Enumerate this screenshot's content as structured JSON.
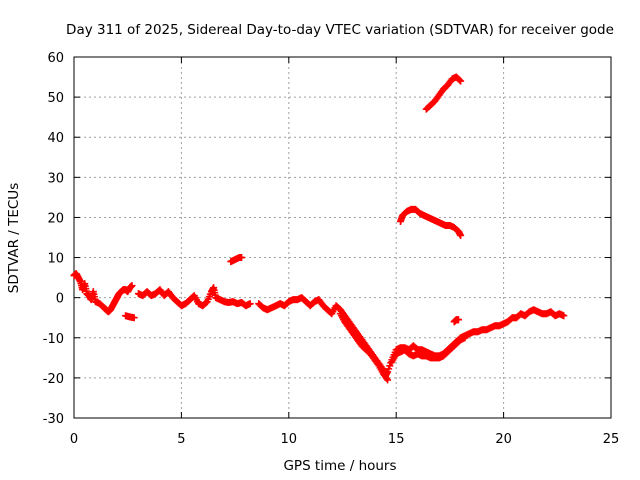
{
  "chart_data": {
    "type": "scatter",
    "title": "Day 311 of 2025, Sidereal Day-to-day VTEC variation (SDTVAR) for receiver gode",
    "xlabel": "GPS time / hours",
    "ylabel": "SDTVAR / TECUs",
    "xlim": [
      0,
      25
    ],
    "ylim": [
      -30,
      60
    ],
    "xticks": [
      "0",
      "5",
      "10",
      "15",
      "20",
      "25"
    ],
    "yticks": [
      "-30",
      "-20",
      "-10",
      "0",
      "10",
      "20",
      "30",
      "40",
      "50",
      "60"
    ],
    "grid": true,
    "marker": "+",
    "series_color": "#ff0000",
    "series": [
      {
        "name": "SDTVAR main",
        "points": [
          [
            0.0,
            5.5
          ],
          [
            0.1,
            6.0
          ],
          [
            0.2,
            5.0
          ],
          [
            0.3,
            4.0
          ],
          [
            0.4,
            2.0
          ],
          [
            0.5,
            3.5
          ],
          [
            0.6,
            1.0
          ],
          [
            0.7,
            0.5
          ],
          [
            0.8,
            -0.5
          ],
          [
            0.9,
            1.5
          ],
          [
            1.0,
            -1.0
          ],
          [
            1.2,
            -1.5
          ],
          [
            1.4,
            -2.5
          ],
          [
            1.5,
            -3.0
          ],
          [
            1.6,
            -3.5
          ],
          [
            1.7,
            -3.0
          ],
          [
            1.8,
            -2.0
          ],
          [
            1.9,
            -1.0
          ],
          [
            2.0,
            0.0
          ],
          [
            2.1,
            1.0
          ],
          [
            2.2,
            1.5
          ],
          [
            2.3,
            2.0
          ],
          [
            2.4,
            2.0
          ],
          [
            2.5,
            1.5
          ],
          [
            2.6,
            2.5
          ],
          [
            2.7,
            3.0
          ],
          [
            2.4,
            -4.5
          ],
          [
            2.6,
            -4.8
          ],
          [
            2.8,
            -5.0
          ],
          [
            3.0,
            1.0
          ],
          [
            3.2,
            0.5
          ],
          [
            3.4,
            1.5
          ],
          [
            3.6,
            0.5
          ],
          [
            3.8,
            1.0
          ],
          [
            4.0,
            2.0
          ],
          [
            4.2,
            0.5
          ],
          [
            4.4,
            1.5
          ],
          [
            4.6,
            0.0
          ],
          [
            4.8,
            -1.0
          ],
          [
            5.0,
            -2.0
          ],
          [
            5.2,
            -1.5
          ],
          [
            5.4,
            -0.5
          ],
          [
            5.6,
            0.5
          ],
          [
            5.8,
            -1.5
          ],
          [
            6.0,
            -2.0
          ],
          [
            6.2,
            -1.0
          ],
          [
            6.4,
            1.5
          ],
          [
            6.5,
            2.5
          ],
          [
            6.6,
            0.0
          ],
          [
            6.8,
            -0.5
          ],
          [
            7.0,
            -1.0
          ],
          [
            7.2,
            -1.2
          ],
          [
            7.4,
            -1.0
          ],
          [
            7.6,
            -1.5
          ],
          [
            7.8,
            -1.2
          ],
          [
            8.0,
            -2.0
          ],
          [
            8.2,
            -1.5
          ],
          [
            8.6,
            -1.5
          ],
          [
            8.8,
            -2.5
          ],
          [
            9.0,
            -3.0
          ],
          [
            9.2,
            -2.5
          ],
          [
            9.4,
            -2.0
          ],
          [
            9.6,
            -1.5
          ],
          [
            9.8,
            -2.0
          ],
          [
            10.0,
            -1.0
          ],
          [
            10.2,
            -0.5
          ],
          [
            10.4,
            -0.5
          ],
          [
            10.6,
            0.0
          ],
          [
            10.8,
            -1.0
          ],
          [
            11.0,
            -2.0
          ],
          [
            11.2,
            -1.0
          ],
          [
            11.4,
            -0.5
          ],
          [
            11.6,
            -2.0
          ],
          [
            11.8,
            -3.0
          ],
          [
            12.0,
            -4.0
          ],
          [
            12.2,
            -2.0
          ],
          [
            12.4,
            -3.0
          ],
          [
            12.6,
            -4.5
          ],
          [
            12.8,
            -6.0
          ],
          [
            13.0,
            -7.5
          ],
          [
            13.2,
            -9.0
          ],
          [
            13.4,
            -10.5
          ],
          [
            13.6,
            -12.0
          ],
          [
            13.8,
            -13.5
          ],
          [
            14.0,
            -15.0
          ],
          [
            14.2,
            -16.5
          ],
          [
            14.4,
            -18.0
          ],
          [
            14.5,
            -19.5
          ],
          [
            14.6,
            -18.5
          ],
          [
            14.8,
            -15.5
          ],
          [
            15.0,
            -13.0
          ],
          [
            15.2,
            -12.5
          ],
          [
            15.4,
            -12.5
          ],
          [
            15.6,
            -13.0
          ],
          [
            15.8,
            -12.0
          ],
          [
            16.0,
            -13.0
          ],
          [
            16.2,
            -13.0
          ],
          [
            16.4,
            -13.5
          ],
          [
            16.6,
            -14.0
          ],
          [
            16.8,
            -14.5
          ],
          [
            17.0,
            -14.5
          ],
          [
            17.2,
            -14.0
          ],
          [
            17.4,
            -13.0
          ],
          [
            17.6,
            -12.0
          ],
          [
            17.8,
            -11.0
          ],
          [
            18.0,
            -10.0
          ],
          [
            18.2,
            -9.5
          ],
          [
            18.4,
            -9.0
          ],
          [
            18.6,
            -8.5
          ],
          [
            18.8,
            -8.5
          ],
          [
            19.0,
            -8.0
          ],
          [
            19.2,
            -8.0
          ],
          [
            19.4,
            -7.5
          ],
          [
            19.6,
            -7.0
          ],
          [
            19.8,
            -7.0
          ],
          [
            20.0,
            -6.5
          ],
          [
            20.2,
            -6.0
          ],
          [
            20.4,
            -5.0
          ],
          [
            20.6,
            -5.0
          ],
          [
            20.8,
            -4.0
          ],
          [
            21.0,
            -4.5
          ],
          [
            21.2,
            -3.5
          ],
          [
            21.4,
            -3.0
          ],
          [
            21.6,
            -3.5
          ],
          [
            21.8,
            -4.0
          ],
          [
            22.0,
            -4.0
          ],
          [
            22.2,
            -3.5
          ],
          [
            22.4,
            -4.5
          ],
          [
            22.6,
            -4.0
          ],
          [
            22.8,
            -4.5
          ],
          [
            12.4,
            -4.0
          ],
          [
            12.6,
            -6.0
          ],
          [
            12.8,
            -7.5
          ],
          [
            13.0,
            -9.0
          ],
          [
            13.2,
            -10.5
          ],
          [
            13.4,
            -12.0
          ],
          [
            13.6,
            -13.0
          ],
          [
            13.8,
            -14.0
          ],
          [
            14.0,
            -15.5
          ],
          [
            14.2,
            -17.0
          ],
          [
            14.4,
            -19.0
          ],
          [
            14.6,
            -20.5
          ],
          [
            14.8,
            -16.0
          ],
          [
            15.0,
            -14.0
          ],
          [
            15.2,
            -13.5
          ],
          [
            15.4,
            -13.0
          ],
          [
            15.6,
            -14.0
          ],
          [
            15.8,
            -14.5
          ],
          [
            16.0,
            -14.0
          ],
          [
            16.2,
            -14.5
          ],
          [
            16.4,
            -14.5
          ],
          [
            16.6,
            -15.0
          ],
          [
            16.8,
            -15.0
          ],
          [
            17.0,
            -15.0
          ],
          [
            17.2,
            -14.5
          ],
          [
            17.4,
            -13.5
          ],
          [
            17.6,
            -12.5
          ],
          [
            17.8,
            -11.5
          ],
          [
            18.0,
            -10.5
          ],
          [
            18.2,
            -10.0
          ],
          [
            17.7,
            -6.0
          ],
          [
            17.8,
            -5.5
          ],
          [
            17.9,
            -5.5
          ]
        ]
      },
      {
        "name": "SDTVAR short segment near 7.8 h",
        "points": [
          [
            7.3,
            9.0
          ],
          [
            7.5,
            9.5
          ],
          [
            7.7,
            10.0
          ],
          [
            7.8,
            10.0
          ]
        ]
      },
      {
        "name": "SDTVAR high arc 15-18 h",
        "points": [
          [
            15.2,
            19.0
          ],
          [
            15.3,
            20.5
          ],
          [
            15.5,
            21.5
          ],
          [
            15.7,
            22.0
          ],
          [
            15.9,
            22.0
          ],
          [
            16.1,
            21.0
          ],
          [
            16.3,
            20.5
          ],
          [
            16.5,
            20.0
          ],
          [
            16.7,
            19.5
          ],
          [
            16.9,
            19.0
          ],
          [
            17.1,
            18.5
          ],
          [
            17.3,
            18.0
          ],
          [
            17.5,
            18.0
          ],
          [
            17.7,
            17.5
          ],
          [
            17.9,
            16.5
          ],
          [
            18.0,
            15.5
          ]
        ]
      },
      {
        "name": "SDTVAR top arc 16.5-18 h",
        "points": [
          [
            16.4,
            47.0
          ],
          [
            16.6,
            48.0
          ],
          [
            16.8,
            49.0
          ],
          [
            17.0,
            50.5
          ],
          [
            17.2,
            52.0
          ],
          [
            17.4,
            53.0
          ],
          [
            17.6,
            54.5
          ],
          [
            17.8,
            55.0
          ],
          [
            18.0,
            54.0
          ]
        ]
      }
    ]
  }
}
